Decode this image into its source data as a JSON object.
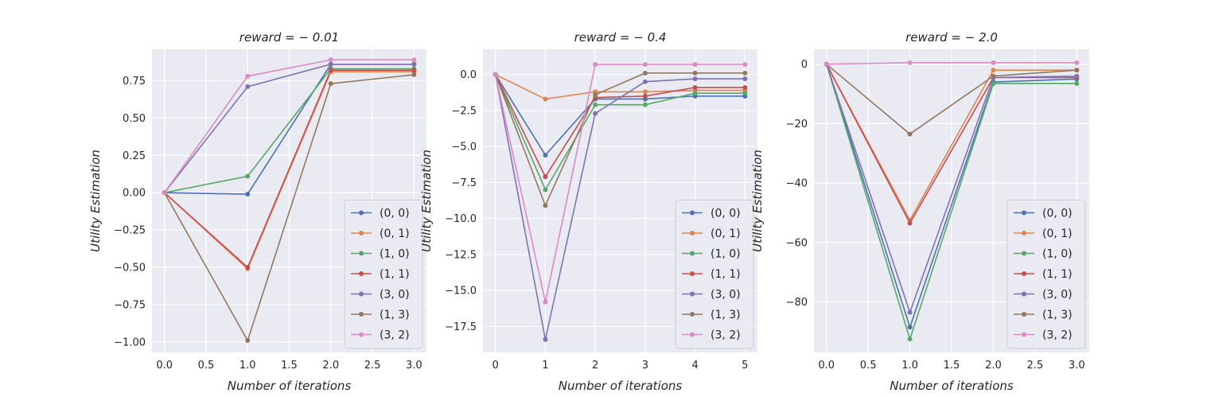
{
  "chart_data": [
    {
      "type": "line",
      "title": "reward = − 0.01",
      "xlabel": "Number of iterations",
      "ylabel": "Utility Estimation",
      "xlim": [
        -0.15,
        3.15
      ],
      "ylim": [
        -1.07,
        0.96
      ],
      "xticks": [
        0,
        0.5,
        1,
        1.5,
        2,
        2.5,
        3
      ],
      "xtick_labels": [
        "0.0",
        "0.5",
        "1.0",
        "1.5",
        "2.0",
        "2.5",
        "3.0"
      ],
      "yticks": [
        -1.0,
        -0.75,
        -0.5,
        -0.25,
        0,
        0.25,
        0.5,
        0.75
      ],
      "ytick_labels": [
        "−1.00",
        "−0.75",
        "−0.50",
        "−0.25",
        "0.00",
        "0.25",
        "0.50",
        "0.75"
      ],
      "grid": true,
      "legend_position": "lower-right",
      "x": [
        0,
        1,
        2,
        3
      ],
      "series": [
        {
          "name": "(0, 0)",
          "values": [
            0,
            -0.01,
            0.86,
            0.86
          ]
        },
        {
          "name": "(0, 1)",
          "values": [
            0,
            -0.51,
            0.81,
            0.81
          ]
        },
        {
          "name": "(1, 0)",
          "values": [
            0,
            0.11,
            0.83,
            0.83
          ]
        },
        {
          "name": "(1, 1)",
          "values": [
            0,
            -0.5,
            0.82,
            0.82
          ]
        },
        {
          "name": "(3, 0)",
          "values": [
            0,
            0.71,
            0.86,
            0.86
          ]
        },
        {
          "name": "(1, 3)",
          "values": [
            0,
            -0.99,
            0.73,
            0.79
          ]
        },
        {
          "name": "(3, 2)",
          "values": [
            0,
            0.78,
            0.89,
            0.89
          ]
        }
      ]
    },
    {
      "type": "line",
      "title": "reward = − 0.4",
      "xlabel": "Number of iterations",
      "ylabel": "Utility Estimation",
      "xlim": [
        -0.25,
        5.25
      ],
      "ylim": [
        -19.3,
        1.75
      ],
      "xticks": [
        0,
        1,
        2,
        3,
        4,
        5
      ],
      "xtick_labels": [
        "0",
        "1",
        "2",
        "3",
        "4",
        "5"
      ],
      "yticks": [
        -17.5,
        -15.0,
        -12.5,
        -10.0,
        -7.5,
        -5.0,
        -2.5,
        0
      ],
      "ytick_labels": [
        "−17.5",
        "−15.0",
        "−12.5",
        "−10.0",
        "−7.5",
        "−5.0",
        "−2.5",
        "0.0"
      ],
      "grid": true,
      "legend_position": "lower-right",
      "x": [
        0,
        1,
        2,
        3,
        4,
        5
      ],
      "series": [
        {
          "name": "(0, 0)",
          "values": [
            0,
            -5.6,
            -1.7,
            -1.7,
            -1.5,
            -1.5
          ]
        },
        {
          "name": "(0, 1)",
          "values": [
            0,
            -1.7,
            -1.2,
            -1.2,
            -1.1,
            -1.1
          ]
        },
        {
          "name": "(1, 0)",
          "values": [
            0,
            -8.0,
            -2.1,
            -2.1,
            -1.3,
            -1.3
          ]
        },
        {
          "name": "(1, 1)",
          "values": [
            0,
            -7.1,
            -1.6,
            -1.5,
            -0.9,
            -0.9
          ]
        },
        {
          "name": "(3, 0)",
          "values": [
            0,
            -18.4,
            -2.7,
            -0.5,
            -0.3,
            -0.3
          ]
        },
        {
          "name": "(1, 3)",
          "values": [
            0,
            -9.1,
            -1.4,
            0.1,
            0.1,
            0.1
          ]
        },
        {
          "name": "(3, 2)",
          "values": [
            0,
            -15.8,
            0.7,
            0.7,
            0.7,
            0.7
          ]
        }
      ]
    },
    {
      "type": "line",
      "title": "reward = − 2.0",
      "xlabel": "Number of iterations",
      "ylabel": "Utility Estimation",
      "xlim": [
        -0.15,
        3.15
      ],
      "ylim": [
        -97.0,
        5.0
      ],
      "xticks": [
        0,
        0.5,
        1,
        1.5,
        2,
        2.5,
        3
      ],
      "xtick_labels": [
        "0.0",
        "0.5",
        "1.0",
        "1.5",
        "2.0",
        "2.5",
        "3.0"
      ],
      "yticks": [
        -80,
        -60,
        -40,
        -20,
        0
      ],
      "ytick_labels": [
        "−80",
        "−60",
        "−40",
        "−20",
        "0"
      ],
      "grid": true,
      "legend_position": "lower-right",
      "x": [
        0,
        1,
        2,
        3
      ],
      "series": [
        {
          "name": "(0, 0)",
          "values": [
            0,
            -88.5,
            -6.0,
            -5.0
          ]
        },
        {
          "name": "(0, 1)",
          "values": [
            0,
            -52.5,
            -2.0,
            -2.0
          ]
        },
        {
          "name": "(1, 0)",
          "values": [
            0,
            -92.5,
            -6.5,
            -6.5
          ]
        },
        {
          "name": "(1, 1)",
          "values": [
            0,
            -53.5,
            -4.5,
            -4.5
          ]
        },
        {
          "name": "(3, 0)",
          "values": [
            0,
            -83.5,
            -4.5,
            -4.0
          ]
        },
        {
          "name": "(1, 3)",
          "values": [
            0,
            -23.5,
            -4.0,
            -2.0
          ]
        },
        {
          "name": "(3, 2)",
          "values": [
            0,
            0.5,
            0.5,
            0.5
          ]
        }
      ]
    }
  ],
  "colors": {
    "series": [
      "#4c72b0",
      "#dd8452",
      "#55a868",
      "#c44e52",
      "#8172b3",
      "#937860",
      "#da8bc3"
    ],
    "axes_background": "#eaeaf2",
    "grid": "#ffffff",
    "text": "#262626"
  }
}
